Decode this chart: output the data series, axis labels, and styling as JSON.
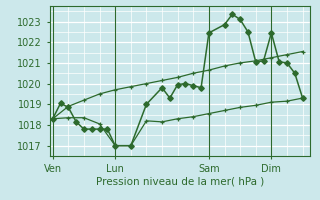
{
  "bg_color": "#cce8eb",
  "grid_color": "#ffffff",
  "line_color": "#2d6a2d",
  "xlabel": "Pression niveau de la mer( hPa )",
  "ylim": [
    1016.5,
    1023.75
  ],
  "yticks": [
    1017,
    1018,
    1019,
    1020,
    1021,
    1022,
    1023
  ],
  "day_labels": [
    "Ven",
    "Lun",
    "Sam",
    "Dim"
  ],
  "day_positions": [
    0,
    4,
    10,
    14
  ],
  "xlim": [
    -0.2,
    16.5
  ],
  "line_main_x": [
    0,
    0.5,
    1,
    1.5,
    2,
    2.5,
    3,
    3.5,
    4,
    5,
    6,
    7,
    7.5,
    8,
    8.5,
    9,
    9.5,
    10,
    11,
    11.5,
    12,
    12.5,
    13,
    13.5,
    14,
    14.5,
    15,
    15.5,
    16
  ],
  "line_main_y": [
    1018.3,
    1019.05,
    1018.85,
    1018.15,
    1017.8,
    1017.8,
    1017.8,
    1017.8,
    1017.0,
    1017.0,
    1019.0,
    1019.8,
    1019.3,
    1019.95,
    1020.0,
    1019.9,
    1019.8,
    1022.45,
    1022.85,
    1023.35,
    1023.1,
    1022.5,
    1021.05,
    1021.1,
    1022.45,
    1021.05,
    1021.0,
    1020.5,
    1019.3
  ],
  "line_upper_x": [
    0,
    1,
    2,
    3,
    4,
    5,
    6,
    7,
    8,
    9,
    10,
    11,
    12,
    13,
    14,
    15,
    16
  ],
  "line_upper_y": [
    1018.3,
    1018.9,
    1019.2,
    1019.5,
    1019.7,
    1019.85,
    1020.0,
    1020.15,
    1020.3,
    1020.5,
    1020.65,
    1020.85,
    1021.0,
    1021.1,
    1021.25,
    1021.4,
    1021.55
  ],
  "line_lower_x": [
    0,
    1,
    2,
    3,
    4,
    5,
    6,
    7,
    8,
    9,
    10,
    11,
    12,
    13,
    14,
    15,
    16
  ],
  "line_lower_y": [
    1018.3,
    1018.35,
    1018.35,
    1018.05,
    1017.0,
    1017.0,
    1018.2,
    1018.15,
    1018.3,
    1018.4,
    1018.55,
    1018.7,
    1018.85,
    1018.95,
    1019.1,
    1019.15,
    1019.3
  ]
}
